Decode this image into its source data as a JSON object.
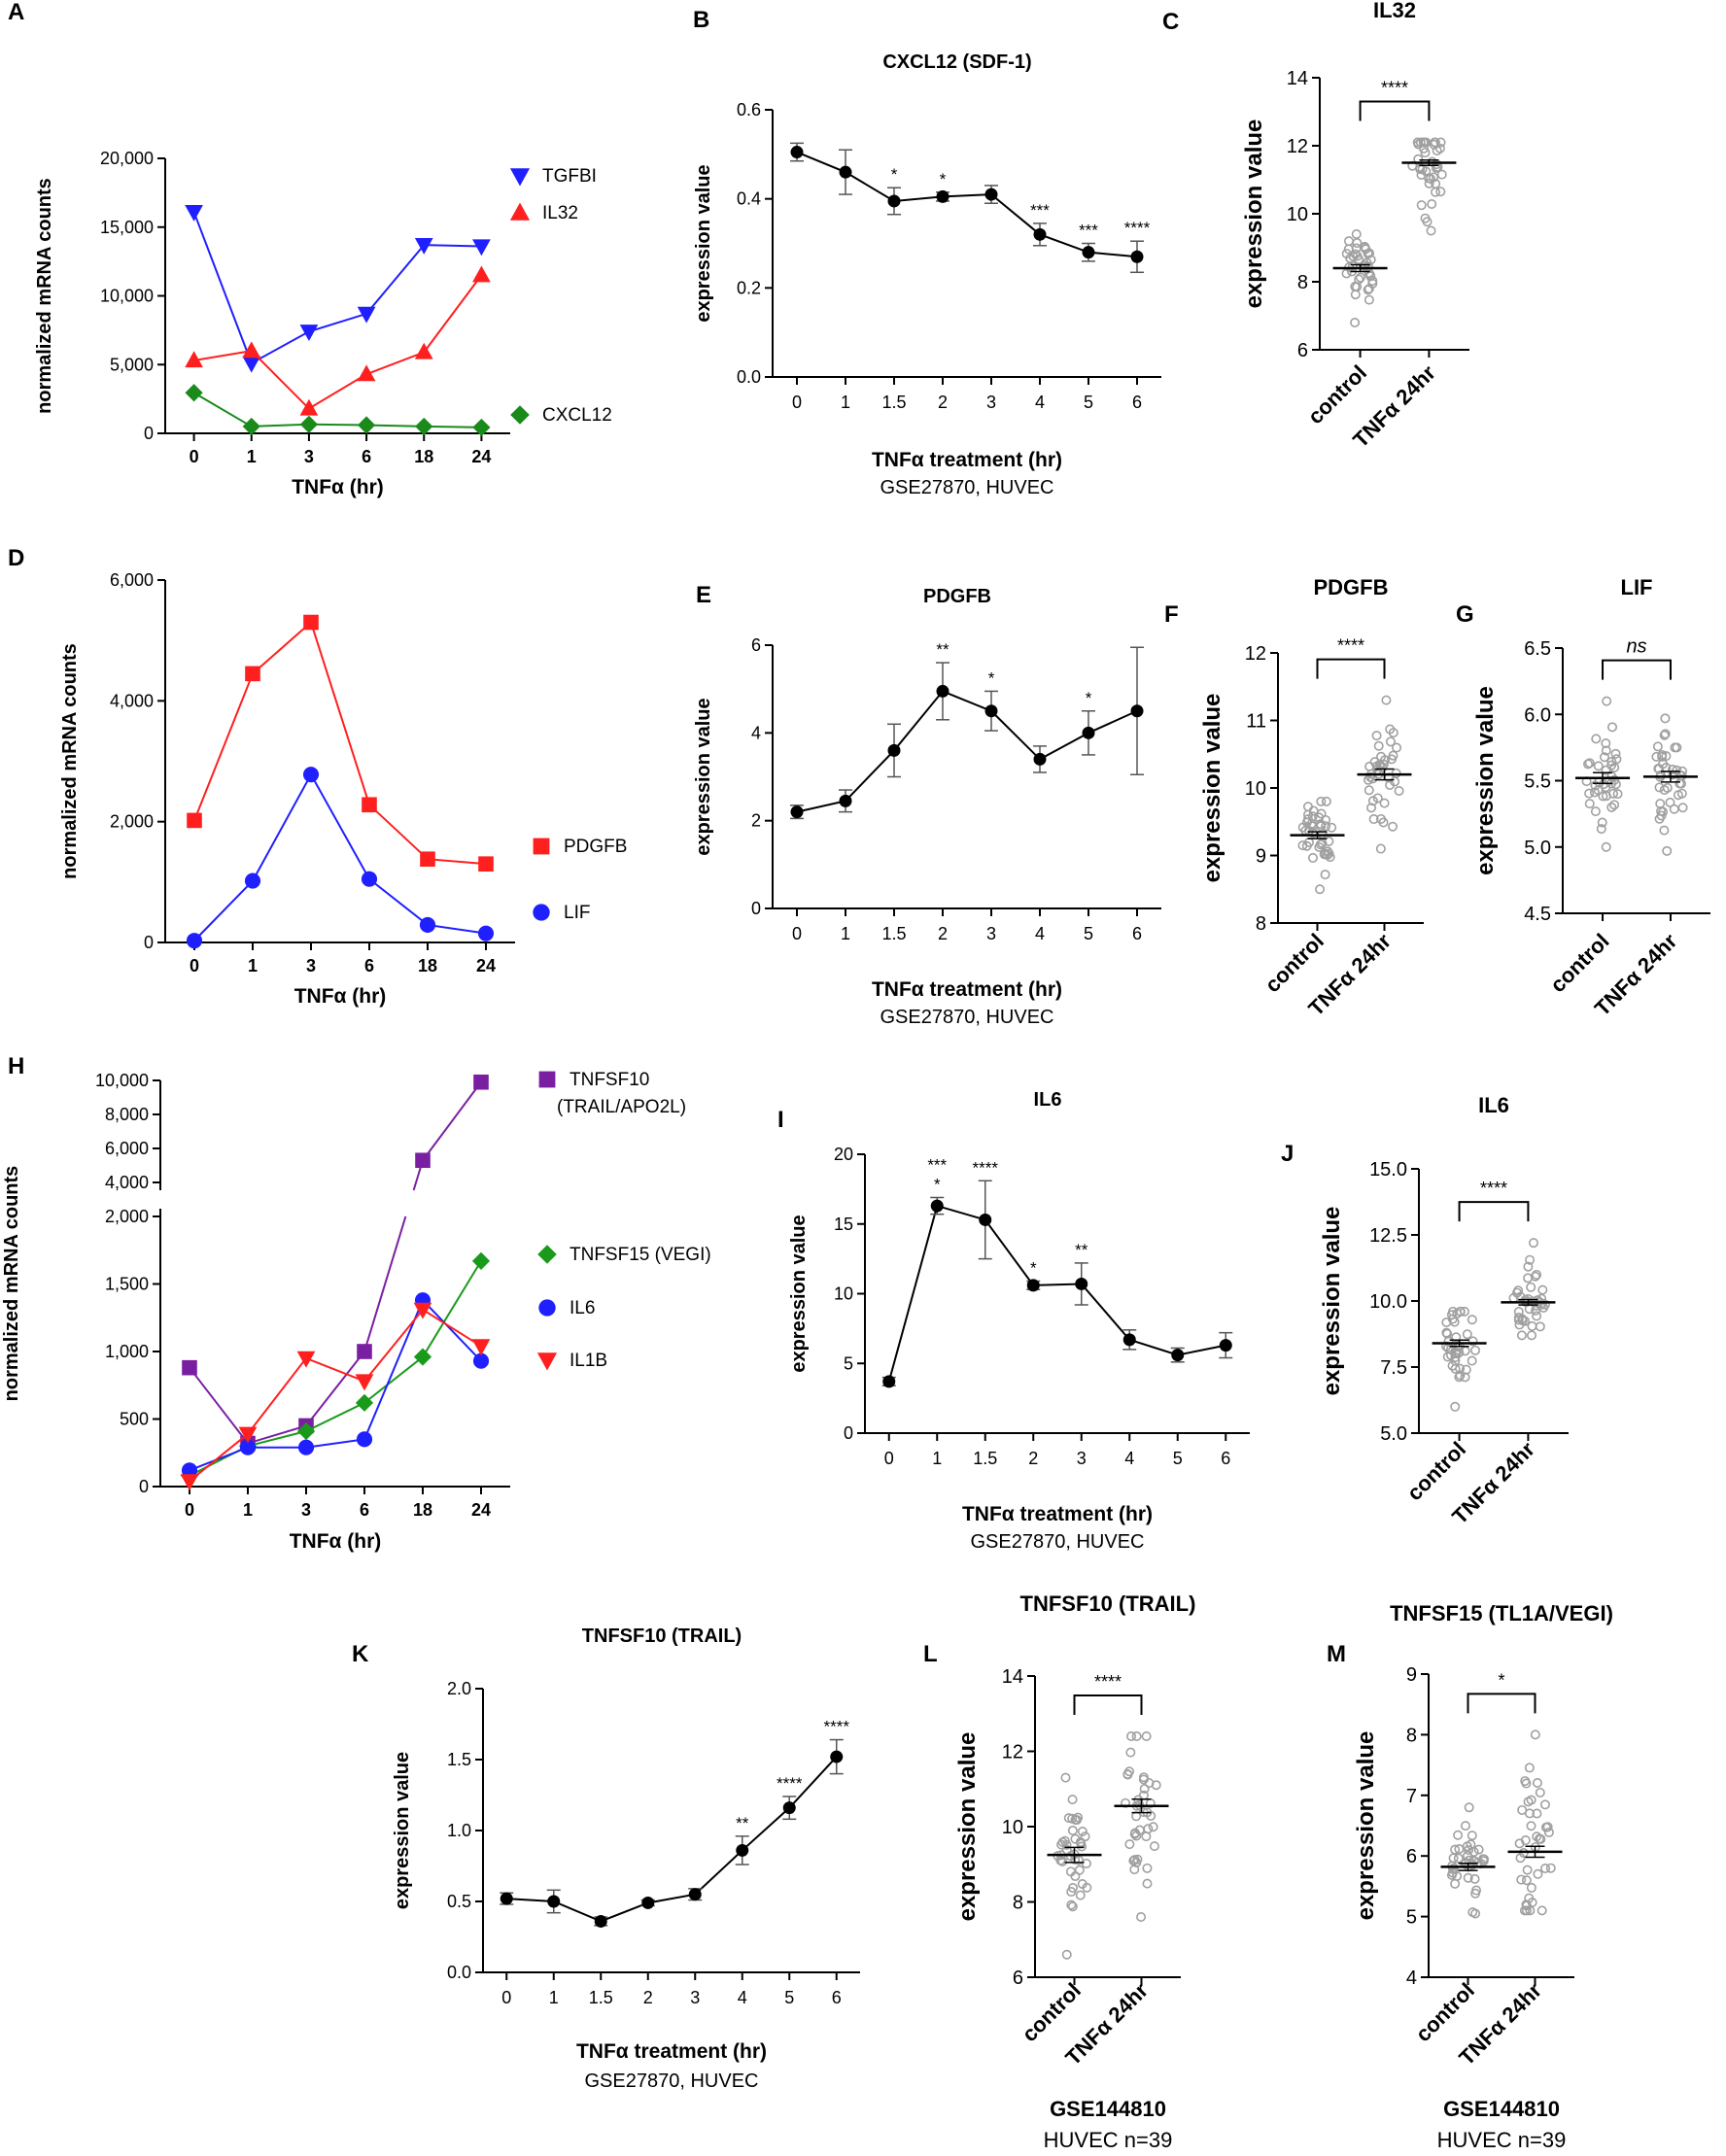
{
  "chart_data": [
    {
      "id": "A",
      "panel_label": "A",
      "type": "line",
      "title": "",
      "categories": [
        "0",
        "1",
        "3",
        "6",
        "18",
        "24"
      ],
      "xlabel": "TNFα (hr)",
      "ylabel": "normalized mRNA counts",
      "ylim": [
        0,
        20000
      ],
      "yticks": [
        "0",
        "5,000",
        "10,000",
        "15,000",
        "20,000"
      ],
      "series": [
        {
          "name": "TGFBI",
          "color": "#1f1fff",
          "marker": "triangle-down",
          "values": [
            16100,
            5100,
            7400,
            8700,
            13700,
            13600
          ]
        },
        {
          "name": "IL32",
          "color": "#ff1f1f",
          "marker": "triangle-up",
          "values": [
            5300,
            6000,
            1800,
            4300,
            5900,
            11500
          ]
        },
        {
          "name": "CXCL12",
          "color": "#1a8a1a",
          "marker": "diamond",
          "values": [
            2950,
            500,
            650,
            600,
            500,
            430
          ]
        }
      ]
    },
    {
      "id": "B",
      "panel_label": "B",
      "type": "line",
      "title": "CXCL12 (SDF-1)",
      "categories": [
        "0",
        "1",
        "1.5",
        "2",
        "3",
        "4",
        "5",
        "6"
      ],
      "values": [
        0.505,
        0.46,
        0.395,
        0.405,
        0.41,
        0.32,
        0.28,
        0.27
      ],
      "errors": [
        0.02,
        0.05,
        0.03,
        0.01,
        0.02,
        0.025,
        0.02,
        0.035
      ],
      "significance": [
        "",
        "",
        "*",
        "*",
        "",
        "***",
        "***",
        "****"
      ],
      "xlabel": "TNFα treatment  (hr)",
      "ylabel": "expression value",
      "ylim": [
        0,
        0.6
      ],
      "yticks": [
        "0.0",
        "0.2",
        "0.4",
        "0.6"
      ],
      "subtitle": "GSE27870,  HUVEC"
    },
    {
      "id": "C",
      "panel_label": "C",
      "type": "scatter",
      "title": "IL32",
      "categories": [
        "control",
        "TNFα 24hr"
      ],
      "means": [
        8.4,
        11.5
      ],
      "sems": [
        0.1,
        0.08
      ],
      "ranges": [
        [
          6.8,
          9.4
        ],
        [
          9.5,
          12.1
        ]
      ],
      "significance": "****",
      "ylabel": "expression value",
      "ylim": [
        6,
        14
      ],
      "yticks": [
        "6",
        "8",
        "10",
        "12",
        "14"
      ]
    },
    {
      "id": "D",
      "panel_label": "D",
      "type": "line",
      "title": "",
      "categories": [
        "0",
        "1",
        "3",
        "6",
        "18",
        "24"
      ],
      "xlabel": "TNFα (hr)",
      "ylabel": "normalized mRNA counts",
      "ylim": [
        0,
        6000
      ],
      "yticks": [
        "0",
        "2,000",
        "4,000",
        "6,000"
      ],
      "series": [
        {
          "name": "PDGFB",
          "color": "#ff1f1f",
          "marker": "square",
          "values": [
            2020,
            4450,
            5300,
            2280,
            1380,
            1300
          ]
        },
        {
          "name": "LIF",
          "color": "#1f1fff",
          "marker": "circle",
          "values": [
            30,
            1020,
            2780,
            1050,
            290,
            150
          ]
        }
      ]
    },
    {
      "id": "E",
      "panel_label": "E",
      "type": "line",
      "title": "PDGFB",
      "categories": [
        "0",
        "1",
        "1.5",
        "2",
        "3",
        "4",
        "5",
        "6"
      ],
      "values": [
        2.2,
        2.45,
        3.6,
        4.95,
        4.5,
        3.4,
        4.0,
        4.5
      ],
      "errors": [
        0.15,
        0.25,
        0.6,
        0.65,
        0.45,
        0.3,
        0.5,
        1.45
      ],
      "significance": [
        "",
        "",
        "",
        "**",
        "*",
        "",
        "*",
        ""
      ],
      "xlabel": "TNFα treatment  (hr)",
      "ylabel": "expression value",
      "ylim": [
        0,
        6
      ],
      "yticks": [
        "0",
        "2",
        "4",
        "6"
      ],
      "subtitle": "GSE27870,  HUVEC"
    },
    {
      "id": "F",
      "panel_label": "F",
      "type": "scatter",
      "title": "PDGFB",
      "categories": [
        "control",
        "TNFα 24hr"
      ],
      "means": [
        9.3,
        10.2
      ],
      "sems": [
        0.05,
        0.08
      ],
      "ranges": [
        [
          8.5,
          9.8
        ],
        [
          9.1,
          11.3
        ]
      ],
      "significance": "****",
      "ylabel": "expression value",
      "ylim": [
        8,
        12
      ],
      "yticks": [
        "8",
        "9",
        "10",
        "11",
        "12"
      ]
    },
    {
      "id": "G",
      "panel_label": "G",
      "type": "scatter",
      "title": "LIF",
      "categories": [
        "control",
        "TNFα 24hr"
      ],
      "means": [
        5.52,
        5.53
      ],
      "sems": [
        0.04,
        0.04
      ],
      "ranges": [
        [
          5.0,
          6.1
        ],
        [
          4.97,
          5.97
        ]
      ],
      "significance": "ns",
      "ylabel": "expression value",
      "ylim": [
        4.5,
        6.5
      ],
      "yticks": [
        "4.5",
        "5.0",
        "5.5",
        "6.0",
        "6.5"
      ]
    },
    {
      "id": "H",
      "panel_label": "H",
      "type": "line",
      "title": "",
      "categories": [
        "0",
        "1",
        "3",
        "6",
        "18",
        "24"
      ],
      "xlabel": "TNFα (hr)",
      "ylabel": "normalized mRNA counts",
      "ylim": [
        0,
        10000
      ],
      "yticks": [
        "0",
        "500",
        "1,000",
        "1,500",
        "2,000",
        "4,000",
        "6,000",
        "8,000",
        "10,000"
      ],
      "series": [
        {
          "name": "TNFSF10",
          "name_line2": "(TRAIL/APO2L)",
          "color": "#7a1fa2",
          "marker": "square",
          "values": [
            880,
            320,
            450,
            1000,
            5300,
            9900
          ]
        },
        {
          "name": "TNFSF15 (VEGI)",
          "color": "#1a9a1a",
          "marker": "diamond",
          "values": [
            80,
            300,
            410,
            620,
            960,
            1670
          ]
        },
        {
          "name": "IL6",
          "color": "#1f1fff",
          "marker": "circle",
          "values": [
            120,
            290,
            290,
            350,
            1380,
            930
          ]
        },
        {
          "name": "IL1B",
          "color": "#ff1f1f",
          "marker": "triangle-down",
          "values": [
            40,
            390,
            950,
            780,
            1310,
            1040
          ]
        }
      ]
    },
    {
      "id": "I",
      "panel_label": "I",
      "type": "line",
      "title": "IL6",
      "categories": [
        "0",
        "1",
        "1.5",
        "2",
        "3",
        "4",
        "5",
        "6"
      ],
      "values": [
        3.7,
        16.3,
        15.3,
        10.6,
        10.7,
        6.7,
        5.6,
        6.3
      ],
      "errors": [
        0.3,
        0.6,
        2.8,
        0.3,
        1.5,
        0.7,
        0.5,
        0.9
      ],
      "significance": [
        "",
        "*** *",
        "****",
        "*",
        "**",
        "",
        "",
        ""
      ],
      "xlabel": "TNFα treatment  (hr)",
      "ylabel": "expression value",
      "ylim": [
        0,
        20
      ],
      "yticks": [
        "0",
        "5",
        "10",
        "15",
        "20"
      ],
      "subtitle": "GSE27870,  HUVEC"
    },
    {
      "id": "J",
      "panel_label": "J",
      "type": "scatter",
      "title": "IL6",
      "categories": [
        "control",
        "TNFα 24hr"
      ],
      "means": [
        8.4,
        9.95
      ],
      "sems": [
        0.12,
        0.1
      ],
      "ranges": [
        [
          6.0,
          9.6
        ],
        [
          8.7,
          12.2
        ]
      ],
      "significance": "****",
      "ylabel": "expression value",
      "ylim": [
        5.0,
        15.0
      ],
      "yticks": [
        "5.0",
        "7.5",
        "10.0",
        "12.5",
        "15.0"
      ]
    },
    {
      "id": "K",
      "panel_label": "K",
      "type": "line",
      "title": "TNFSF10 (TRAIL)",
      "categories": [
        "0",
        "1",
        "1.5",
        "2",
        "3",
        "4",
        "5",
        "6"
      ],
      "values": [
        0.52,
        0.5,
        0.36,
        0.49,
        0.55,
        0.86,
        1.16,
        1.52
      ],
      "errors": [
        0.04,
        0.08,
        0.03,
        0.02,
        0.04,
        0.1,
        0.08,
        0.12
      ],
      "significance": [
        "",
        "",
        "",
        "",
        "",
        "**",
        "****",
        "****"
      ],
      "xlabel": "TNFα treatment  (hr)",
      "ylabel": "expression value",
      "ylim": [
        0,
        2.0
      ],
      "yticks": [
        "0.0",
        "0.5",
        "1.0",
        "1.5",
        "2.0"
      ],
      "subtitle": "GSE27870,  HUVEC"
    },
    {
      "id": "L",
      "panel_label": "L",
      "type": "scatter",
      "title": "TNFSF10 (TRAIL)",
      "categories": [
        "control",
        "TNFα 24hr"
      ],
      "means": [
        9.25,
        10.55
      ],
      "sems": [
        0.2,
        0.18
      ],
      "ranges": [
        [
          6.6,
          11.3
        ],
        [
          7.6,
          12.4
        ]
      ],
      "significance": "****",
      "ylabel": "expression value",
      "ylim": [
        6,
        14
      ],
      "yticks": [
        "6",
        "8",
        "10",
        "12",
        "14"
      ],
      "footer_line1": "GSE144810",
      "footer_line2": "HUVEC n=39"
    },
    {
      "id": "M",
      "panel_label": "M",
      "type": "scatter",
      "title": "TNFSF15 (TL1A/VEGI)",
      "categories": [
        "control",
        "TNFα 24hr"
      ],
      "means": [
        5.82,
        6.07
      ],
      "sems": [
        0.06,
        0.09
      ],
      "ranges": [
        [
          5.05,
          6.8
        ],
        [
          5.1,
          8.0
        ]
      ],
      "significance": "*",
      "ylabel": "expression value",
      "ylim": [
        4,
        9
      ],
      "yticks": [
        "4",
        "5",
        "6",
        "7",
        "8",
        "9"
      ],
      "footer_line1": "GSE144810",
      "footer_line2": "HUVEC n=39"
    }
  ]
}
